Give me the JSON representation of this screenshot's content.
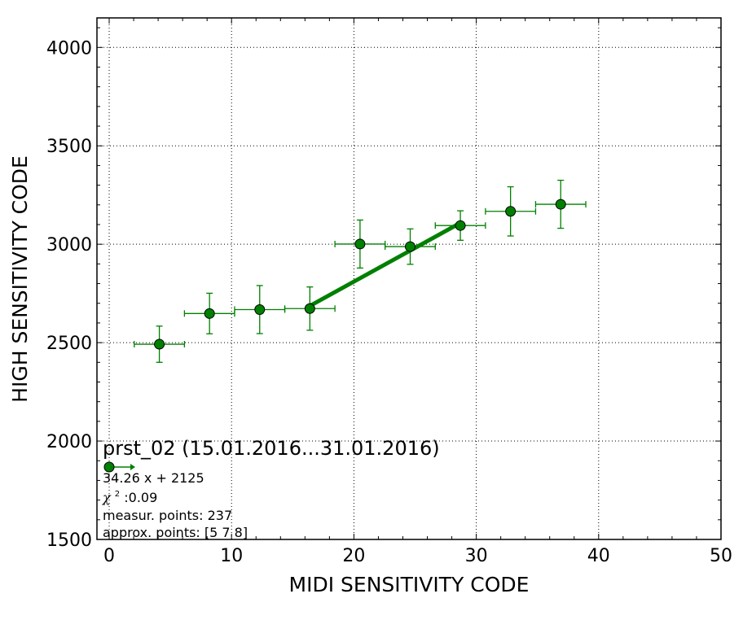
{
  "chart_data": {
    "type": "scatter",
    "xlabel": "MIDI SENSITIVITY CODE",
    "ylabel": "HIGH SENSITIVITY CODE",
    "xlim": [
      -1,
      50
    ],
    "ylim": [
      1500,
      4150
    ],
    "xticks": [
      0,
      10,
      20,
      30,
      40,
      50
    ],
    "yticks": [
      1500,
      2000,
      2500,
      3000,
      3500,
      4000
    ],
    "xtick_labels": [
      "0",
      "10",
      "20",
      "30",
      "40",
      "50"
    ],
    "ytick_labels": [
      "1500",
      "2000",
      "2500",
      "3000",
      "3500",
      "4000"
    ],
    "grid": true,
    "color": "#008000",
    "points": [
      {
        "x": 4.1,
        "y": 2492,
        "xerr": 2.05,
        "yerr": 92
      },
      {
        "x": 8.2,
        "y": 2648,
        "xerr": 2.05,
        "yerr": 103
      },
      {
        "x": 12.3,
        "y": 2668,
        "xerr": 2.05,
        "yerr": 122
      },
      {
        "x": 16.4,
        "y": 2673,
        "xerr": 2.05,
        "yerr": 110
      },
      {
        "x": 20.5,
        "y": 3001,
        "xerr": 2.05,
        "yerr": 122
      },
      {
        "x": 24.6,
        "y": 2988,
        "xerr": 2.05,
        "yerr": 90
      },
      {
        "x": 28.7,
        "y": 3095,
        "xerr": 2.05,
        "yerr": 75
      },
      {
        "x": 32.8,
        "y": 3167,
        "xerr": 2.05,
        "yerr": 125
      },
      {
        "x": 36.9,
        "y": 3203,
        "xerr": 2.05,
        "yerr": 122
      }
    ],
    "fit_line": {
      "x_start": 16.4,
      "x_end": 28.7,
      "slope": 34.26,
      "intercept": 2125
    },
    "legend": {
      "placement": "bottom-left",
      "title": "prst_02 (15.01.2016...31.01.2016)",
      "equation": "34.26 x + 2125",
      "chi_symbol": "χ",
      "chi_exponent": "2",
      "chi_value": " :0.09",
      "measur_points": "measur. points: 237",
      "approx_points": "approx. points: [5 7 8]"
    }
  }
}
